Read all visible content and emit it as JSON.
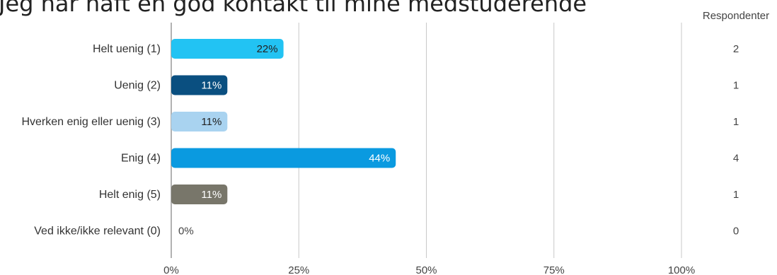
{
  "title": "Jeg har haft en god kontakt til mine medstuderende",
  "chart_data": {
    "type": "bar",
    "orientation": "horizontal",
    "title": "Jeg har haft en god kontakt til mine medstuderende",
    "categories": [
      "Helt uenig (1)",
      "Uenig (2)",
      "Hverken enig eller uenig (3)",
      "Enig (4)",
      "Helt enig (5)",
      "Ved ikke/ikke relevant (0)"
    ],
    "values": [
      22,
      11,
      11,
      44,
      11,
      0
    ],
    "value_labels": [
      "22%",
      "11%",
      "11%",
      "44%",
      "11%",
      "0%"
    ],
    "colors": [
      "#22c3f3",
      "#0a4f80",
      "#a9d3f0",
      "#0a9ae0",
      "#78766a",
      "#cccccc"
    ],
    "label_colors": [
      "#222222",
      "#ffffff",
      "#222222",
      "#ffffff",
      "#ffffff",
      "#444444"
    ],
    "xlim": [
      0,
      100
    ],
    "xticks": [
      "0%",
      "25%",
      "50%",
      "75%",
      "100%"
    ],
    "grid": true,
    "respondents_header": "Respondenter",
    "respondents": [
      "2",
      "1",
      "1",
      "4",
      "1",
      "0"
    ]
  }
}
